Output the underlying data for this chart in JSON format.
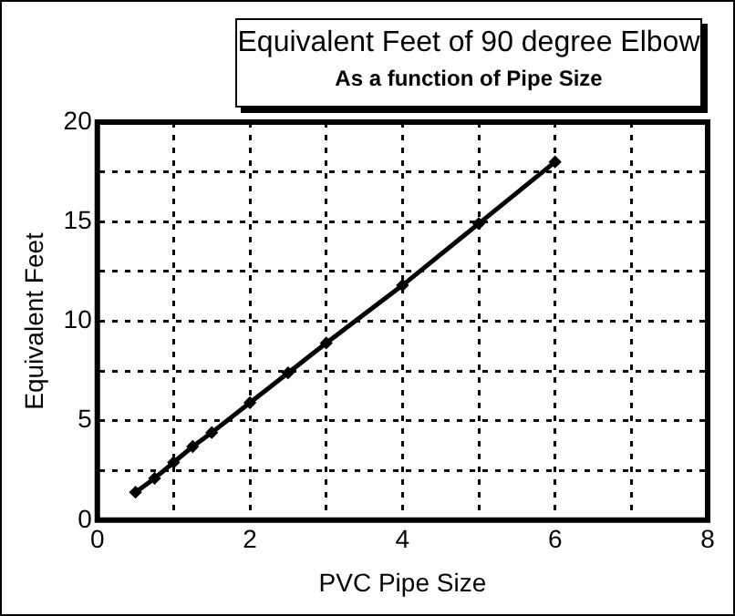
{
  "chart_data": {
    "type": "line",
    "title": "Equivalent Feet of 90 degree Elbow",
    "subtitle": "As a function of Pipe Size",
    "xlabel": "PVC Pipe Size",
    "ylabel": "Equivalent Feet",
    "x": [
      0.5,
      0.75,
      1,
      1.25,
      1.5,
      2,
      2.5,
      3,
      4,
      5,
      6
    ],
    "series": [
      {
        "color": "#000000",
        "values": [
          1.4,
          2.1,
          2.9,
          3.7,
          4.4,
          5.9,
          7.4,
          8.9,
          11.8,
          14.9,
          18
        ]
      }
    ],
    "xlim": [
      0,
      8
    ],
    "xticks": [
      0,
      {
        "value": 1,
        "label": null
      },
      2,
      {
        "value": 3,
        "label": null
      },
      4,
      {
        "value": 5,
        "label": null
      },
      6,
      {
        "value": 7,
        "label": null
      },
      8
    ],
    "ylim": [
      0,
      20
    ],
    "yticks": [
      0,
      {
        "value": 2.5,
        "label": null
      },
      5,
      {
        "value": 7.5,
        "label": null
      },
      10,
      {
        "value": 12.5,
        "label": null
      },
      15,
      {
        "value": 17.5,
        "label": null
      },
      20
    ],
    "grid": true,
    "legend": false,
    "marker": "diamond",
    "line_style": "solid"
  }
}
